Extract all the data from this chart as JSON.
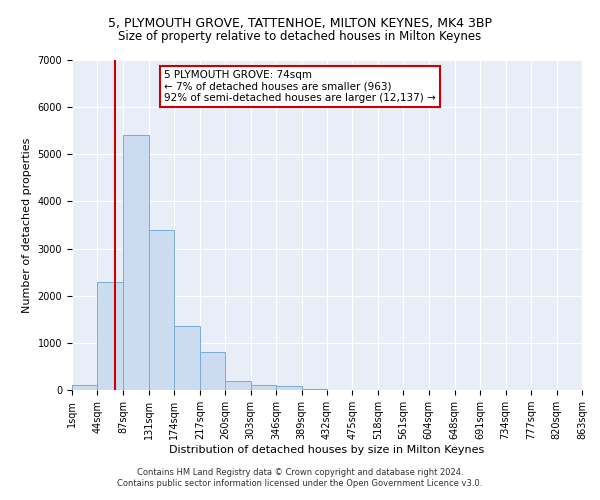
{
  "title1": "5, PLYMOUTH GROVE, TATTENHOE, MILTON KEYNES, MK4 3BP",
  "title2": "Size of property relative to detached houses in Milton Keynes",
  "xlabel": "Distribution of detached houses by size in Milton Keynes",
  "ylabel": "Number of detached properties",
  "footer1": "Contains HM Land Registry data © Crown copyright and database right 2024.",
  "footer2": "Contains public sector information licensed under the Open Government Licence v3.0.",
  "annotation_line1": "5 PLYMOUTH GROVE: 74sqm",
  "annotation_line2": "← 7% of detached houses are smaller (963)",
  "annotation_line3": "92% of semi-detached houses are larger (12,137) →",
  "property_size": 74,
  "bar_edges": [
    1,
    44,
    87,
    131,
    174,
    217,
    260,
    303,
    346,
    389,
    432,
    475,
    518,
    561,
    604,
    648,
    691,
    734,
    777,
    820,
    863
  ],
  "bar_heights": [
    100,
    2300,
    5400,
    3400,
    1350,
    800,
    200,
    100,
    80,
    30,
    0,
    0,
    0,
    0,
    0,
    0,
    0,
    0,
    0,
    0
  ],
  "bar_color": "#ccdcf0",
  "bar_edge_color": "#7aaad4",
  "red_line_color": "#cc0000",
  "annotation_box_color": "#cc0000",
  "plot_bg_color": "#e8eef8",
  "fig_bg_color": "#ffffff",
  "ylim": [
    0,
    7000
  ],
  "yticks": [
    0,
    1000,
    2000,
    3000,
    4000,
    5000,
    6000,
    7000
  ],
  "title1_fontsize": 9,
  "title2_fontsize": 8.5,
  "axis_label_fontsize": 8,
  "tick_fontsize": 7,
  "footer_fontsize": 6
}
